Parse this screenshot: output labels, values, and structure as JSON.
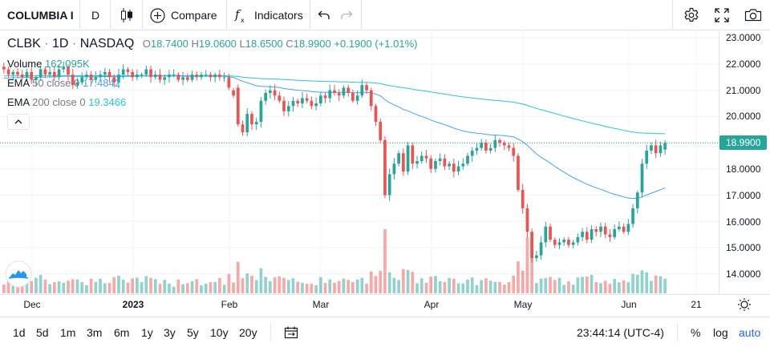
{
  "toolbar": {
    "symbol": "COLUMBIA I",
    "interval": "D",
    "compare_label": "Compare",
    "indicators_label": "Indicators",
    "icons": [
      "candles-icon",
      "plus-circle-icon",
      "fx-icon",
      "undo-icon",
      "redo-icon",
      "gear-icon",
      "fullscreen-icon",
      "camera-icon"
    ]
  },
  "legend": {
    "ticker": "CLBK",
    "interval": "1D",
    "exchange": "NASDAQ",
    "open_label": "O",
    "open": "18.7400",
    "high_label": "H",
    "high": "19.0600",
    "low_label": "L",
    "low": "18.6500",
    "close_label": "C",
    "close": "18.9900",
    "change": "+0.1900 (+1.01%)",
    "volume_label": "Volume",
    "volume": "162.095K",
    "ema50_label": "EMA",
    "ema50_params": "50 close 0",
    "ema50_value": "17.4842",
    "ema200_label": "EMA",
    "ema200_params": "200 close 0",
    "ema200_value": "19.3466",
    "colors": {
      "up": "#26a69a",
      "down": "#ef5350",
      "ema50": "#42a5f5",
      "ema200": "#26c6da"
    }
  },
  "axis": {
    "price_ticks": [
      "23.0000",
      "22.0000",
      "21.0000",
      "20.0000",
      "18.0000",
      "17.0000",
      "16.0000",
      "15.0000",
      "14.0000"
    ],
    "last_price": "18.9900",
    "time_ticks": [
      "Dec",
      "2023",
      "Feb",
      "Mar",
      "Apr",
      "May",
      "Jun",
      "21"
    ]
  },
  "chart_data": {
    "type": "candlestick",
    "symbol": "CLBK",
    "interval": "1D",
    "ylim": [
      13.4,
      23.2
    ],
    "x_labels": [
      "Dec",
      "2023",
      "Feb",
      "Mar",
      "Apr",
      "May",
      "Jun",
      "21"
    ],
    "series": [
      {
        "name": "CLBK",
        "points": [
          [
            21.9,
            21.8
          ],
          [
            21.8,
            21.6
          ],
          [
            21.6,
            21.7
          ],
          [
            21.7,
            21.6
          ],
          [
            21.6,
            21.5
          ],
          [
            21.5,
            21.7
          ],
          [
            21.7,
            21.4
          ],
          [
            21.4,
            21.5
          ],
          [
            21.5,
            21.8
          ],
          [
            21.8,
            21.6
          ],
          [
            21.6,
            21.7
          ],
          [
            21.7,
            21.5
          ],
          [
            21.5,
            21.8
          ],
          [
            21.8,
            21.9
          ],
          [
            21.9,
            21.6
          ],
          [
            21.6,
            21.2
          ],
          [
            21.2,
            21.3
          ],
          [
            21.3,
            21.5
          ],
          [
            21.5,
            21.6
          ],
          [
            21.6,
            21.4
          ],
          [
            21.4,
            21.5
          ],
          [
            21.5,
            21.6
          ],
          [
            21.6,
            21.7
          ],
          [
            21.7,
            21.5
          ],
          [
            21.5,
            21.3
          ],
          [
            21.3,
            21.6
          ],
          [
            21.6,
            21.8
          ],
          [
            21.8,
            21.7
          ],
          [
            21.7,
            21.5
          ],
          [
            21.5,
            21.6
          ],
          [
            21.6,
            21.6
          ],
          [
            21.6,
            21.8
          ],
          [
            21.8,
            21.5
          ],
          [
            21.5,
            21.6
          ],
          [
            21.6,
            21.4
          ],
          [
            21.4,
            21.5
          ],
          [
            21.5,
            21.6
          ],
          [
            21.6,
            21.6
          ],
          [
            21.6,
            21.4
          ],
          [
            21.4,
            21.5
          ],
          [
            21.5,
            21.4
          ],
          [
            21.4,
            21.6
          ],
          [
            21.6,
            21.5
          ],
          [
            21.5,
            21.6
          ],
          [
            21.6,
            21.6
          ],
          [
            21.6,
            21.5
          ],
          [
            21.5,
            21.6
          ],
          [
            21.6,
            21.5
          ],
          [
            21.5,
            21.5
          ],
          [
            21.5,
            21.1
          ],
          [
            21.0,
            20.8
          ],
          [
            21.1,
            19.7
          ],
          [
            19.7,
            19.4
          ],
          [
            19.4,
            20.1
          ],
          [
            20.1,
            19.7
          ],
          [
            19.7,
            19.8
          ],
          [
            19.8,
            20.6
          ],
          [
            20.6,
            20.9
          ],
          [
            20.9,
            21.0
          ],
          [
            21.0,
            20.8
          ],
          [
            20.8,
            20.6
          ],
          [
            20.6,
            20.2
          ],
          [
            20.2,
            20.4
          ],
          [
            20.4,
            20.6
          ],
          [
            20.6,
            20.5
          ],
          [
            20.5,
            20.7
          ],
          [
            20.7,
            20.6
          ],
          [
            20.6,
            20.4
          ],
          [
            20.4,
            20.5
          ],
          [
            20.5,
            20.8
          ],
          [
            20.8,
            20.7
          ],
          [
            20.7,
            21.0
          ],
          [
            21.0,
            20.9
          ],
          [
            20.9,
            20.8
          ],
          [
            20.8,
            21.1
          ],
          [
            21.1,
            20.9
          ],
          [
            20.9,
            20.6
          ],
          [
            20.6,
            20.8
          ],
          [
            20.8,
            21.2
          ],
          [
            21.2,
            21.0
          ],
          [
            21.0,
            20.4
          ],
          [
            20.4,
            19.8
          ],
          [
            19.8,
            19.1
          ],
          [
            19.1,
            17.0
          ],
          [
            17.0,
            17.8
          ],
          [
            17.8,
            18.2
          ],
          [
            18.2,
            18.6
          ],
          [
            18.6,
            17.9
          ],
          [
            17.9,
            18.9
          ],
          [
            18.9,
            18.2
          ],
          [
            18.2,
            18.3
          ],
          [
            18.3,
            18.5
          ],
          [
            18.5,
            18.4
          ],
          [
            18.4,
            18.0
          ],
          [
            18.0,
            18.3
          ],
          [
            18.3,
            18.4
          ],
          [
            18.4,
            18.1
          ],
          [
            18.1,
            18.2
          ],
          [
            18.2,
            17.9
          ],
          [
            17.9,
            18.1
          ],
          [
            18.1,
            18.2
          ],
          [
            18.2,
            18.5
          ],
          [
            18.5,
            18.7
          ],
          [
            18.7,
            18.8
          ],
          [
            18.8,
            19.0
          ],
          [
            19.0,
            18.7
          ],
          [
            18.7,
            18.8
          ],
          [
            18.8,
            19.1
          ],
          [
            19.1,
            19.0
          ],
          [
            19.0,
            18.9
          ],
          [
            18.9,
            18.8
          ],
          [
            18.8,
            18.5
          ],
          [
            18.5,
            17.2
          ],
          [
            17.2,
            16.5
          ],
          [
            16.5,
            15.6
          ],
          [
            15.6,
            14.6
          ],
          [
            14.6,
            14.7
          ],
          [
            14.7,
            15.2
          ],
          [
            15.2,
            15.8
          ],
          [
            15.8,
            15.3
          ],
          [
            15.3,
            15.1
          ],
          [
            15.1,
            15.2
          ],
          [
            15.2,
            15.3
          ],
          [
            15.3,
            15.1
          ],
          [
            15.1,
            15.2
          ],
          [
            15.2,
            15.4
          ],
          [
            15.4,
            15.6
          ],
          [
            15.6,
            15.3
          ],
          [
            15.3,
            15.7
          ],
          [
            15.7,
            15.6
          ],
          [
            15.6,
            15.8
          ],
          [
            15.8,
            15.5
          ],
          [
            15.5,
            15.4
          ],
          [
            15.4,
            15.7
          ],
          [
            15.7,
            15.8
          ],
          [
            15.8,
            15.6
          ],
          [
            15.6,
            15.9
          ],
          [
            15.9,
            16.5
          ],
          [
            16.5,
            17.1
          ],
          [
            17.1,
            18.2
          ],
          [
            18.2,
            18.7
          ],
          [
            18.7,
            18.9
          ],
          [
            18.9,
            18.6
          ],
          [
            18.6,
            18.9
          ],
          [
            18.74,
            18.99
          ]
        ]
      },
      {
        "name": "EMA 50 close 0",
        "values": []
      },
      {
        "name": "EMA 200 close 0",
        "values": []
      },
      {
        "name": "Volume",
        "values": []
      }
    ]
  },
  "bottombar": {
    "ranges": [
      "1d",
      "5d",
      "1m",
      "3m",
      "6m",
      "1y",
      "3y",
      "5y",
      "10y",
      "20y"
    ],
    "clock": "23:44:14 (UTC-4)",
    "percent": "%",
    "log": "log",
    "auto": "auto"
  }
}
